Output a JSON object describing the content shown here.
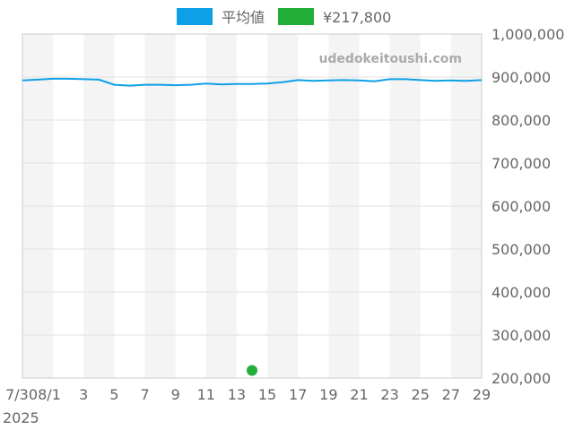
{
  "chart_data": {
    "type": "line",
    "title": "",
    "watermark": "udedokeitoushi.com",
    "legend": [
      {
        "name": "平均値",
        "color": "#0ea0e6"
      },
      {
        "name": "¥217,800",
        "color": "#22ae38"
      }
    ],
    "legend_placement": "top",
    "x": [
      "7/30",
      "7/31",
      "8/1",
      "8/2",
      "8/3",
      "8/4",
      "8/5",
      "8/6",
      "8/7",
      "8/8",
      "8/9",
      "8/10",
      "8/11",
      "8/12",
      "8/13",
      "8/14",
      "8/15",
      "8/16",
      "8/17",
      "8/18",
      "8/19",
      "8/20",
      "8/21",
      "8/22",
      "8/23",
      "8/24",
      "8/25",
      "8/26",
      "8/27",
      "8/28",
      "8/29"
    ],
    "x_tick_labels": [
      "7/30",
      "8/1",
      "3",
      "5",
      "7",
      "9",
      "11",
      "13",
      "15",
      "17",
      "19",
      "21",
      "23",
      "25",
      "27",
      "29"
    ],
    "x_year_label": "2025",
    "series": [
      {
        "name": "平均値",
        "values": [
          892000,
          894000,
          896000,
          896000,
          895000,
          894000,
          882000,
          880000,
          882000,
          882000,
          881000,
          882000,
          885000,
          883000,
          884000,
          884000,
          885000,
          888000,
          893000,
          891000,
          892000,
          893000,
          892000,
          890000,
          895000,
          895000,
          893000,
          891000,
          892000,
          891000,
          893000
        ]
      },
      {
        "name": "¥217,800",
        "points": [
          {
            "x": "8/14",
            "y": 217800
          }
        ]
      }
    ],
    "y_ticks": [
      "200,000",
      "300,000",
      "400,000",
      "500,000",
      "600,000",
      "700,000",
      "800,000",
      "900,000",
      "1,000,000"
    ],
    "ylim": [
      200000,
      1000000
    ],
    "y_axis_position": "right",
    "grid": true,
    "alternating_bands": true
  }
}
